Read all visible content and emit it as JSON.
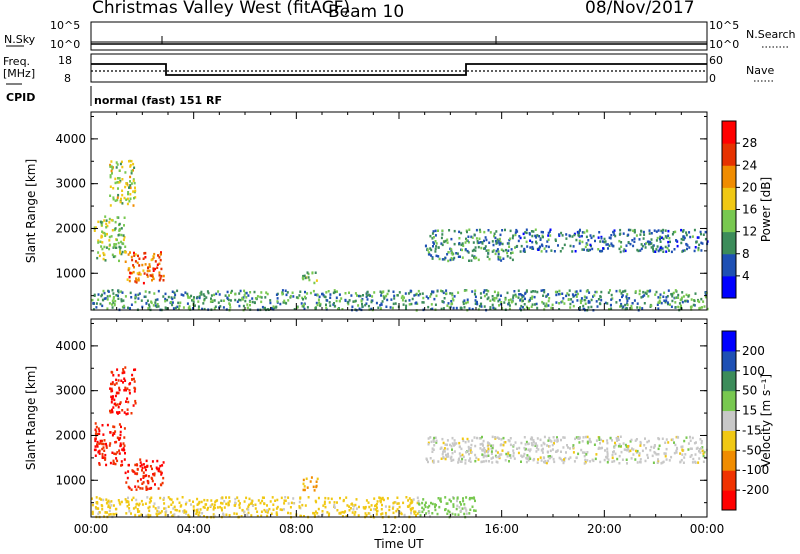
{
  "header": {
    "radar": "Christmas Valley West (fitACF)",
    "beam": "Beam 10",
    "date": "08/Nov/2017"
  },
  "summary": {
    "nsky_label": "N.Sky",
    "nsky_ticks": [
      "10^5",
      "10^0"
    ],
    "nsearch_label": "N.Search",
    "nsearch_ticks": [
      "10^5",
      "10^0"
    ],
    "freq_label": "Freq.",
    "freq_unit": "[MHz]",
    "freq_ticks": [
      "18",
      "8"
    ],
    "nave_label": "Nave",
    "nave_ticks": [
      "60",
      "0"
    ],
    "cpid_label": "CPID",
    "cpid_text": "normal (fast) 151 RF"
  },
  "chart_data": [
    {
      "type": "heatmap",
      "name": "power-panel",
      "ylabel": "Slant Range [km]",
      "yticks": [
        "4000",
        "3000",
        "2000",
        "1000"
      ],
      "ylim": [
        180,
        4600
      ],
      "xlim": [
        0,
        24
      ],
      "colorbar": {
        "label": "Power [dB]",
        "ticks": [
          "28",
          "24",
          "20",
          "16",
          "12",
          "8",
          "4"
        ],
        "colors": [
          "#0000ff",
          "#1e50b4",
          "#3c8c5a",
          "#78c850",
          "#f0c814",
          "#f08c00",
          "#e63200",
          "#ff0000"
        ],
        "range": [
          0,
          32
        ]
      },
      "echo_regions": [
        {
          "t0": 0.1,
          "t1": 1.3,
          "r0": 1300,
          "r1": 2300,
          "value": 14
        },
        {
          "t0": 0.7,
          "t1": 1.7,
          "r0": 2500,
          "r1": 3550,
          "value": 16
        },
        {
          "t0": 1.3,
          "t1": 2.8,
          "r0": 800,
          "r1": 1500,
          "value": 24
        },
        {
          "t0": 8.2,
          "t1": 8.8,
          "r0": 800,
          "r1": 1100,
          "value": 12
        },
        {
          "t0": 13.0,
          "t1": 16.5,
          "r0": 1300,
          "r1": 2000,
          "value": 10
        },
        {
          "t0": 16.5,
          "t1": 24.0,
          "r0": 1500,
          "r1": 2000,
          "value": 8
        },
        {
          "t0": 0.0,
          "t1": 24.0,
          "r0": 200,
          "r1": 650,
          "value": 10
        }
      ]
    },
    {
      "type": "heatmap",
      "name": "velocity-panel",
      "xlabel": "Time UT",
      "ylabel": "Slant Range [km]",
      "yticks": [
        "4000",
        "3000",
        "2000",
        "1000"
      ],
      "xticks": [
        "00:00",
        "04:00",
        "08:00",
        "12:00",
        "16:00",
        "20:00",
        "00:00"
      ],
      "ylim": [
        180,
        4600
      ],
      "xlim": [
        0,
        24
      ],
      "colorbar": {
        "label": "Velocity [m s⁻¹]",
        "ticks": [
          "200",
          "100",
          "50",
          "15",
          "-15",
          "-50",
          "-100",
          "-200"
        ],
        "colors": [
          "#ff0000",
          "#f03200",
          "#f08c00",
          "#f0c814",
          "#c8c8c8",
          "#78c850",
          "#3c8c5a",
          "#1e50b4",
          "#0000ff"
        ]
      },
      "echo_regions": [
        {
          "t0": 0.1,
          "t1": 1.3,
          "r0": 1300,
          "r1": 2300,
          "value": -200
        },
        {
          "t0": 0.7,
          "t1": 1.7,
          "r0": 2500,
          "r1": 3550,
          "value": -200
        },
        {
          "t0": 1.3,
          "t1": 2.8,
          "r0": 800,
          "r1": 1500,
          "value": -200
        },
        {
          "t0": 8.2,
          "t1": 8.8,
          "r0": 800,
          "r1": 1100,
          "value": -60
        },
        {
          "t0": 13.0,
          "t1": 24.0,
          "r0": 1400,
          "r1": 2000,
          "value": 0
        },
        {
          "t0": 0.0,
          "t1": 12.7,
          "r0": 200,
          "r1": 650,
          "value": -30
        },
        {
          "t0": 12.7,
          "t1": 15.0,
          "r0": 200,
          "r1": 650,
          "value": 30
        }
      ]
    }
  ]
}
